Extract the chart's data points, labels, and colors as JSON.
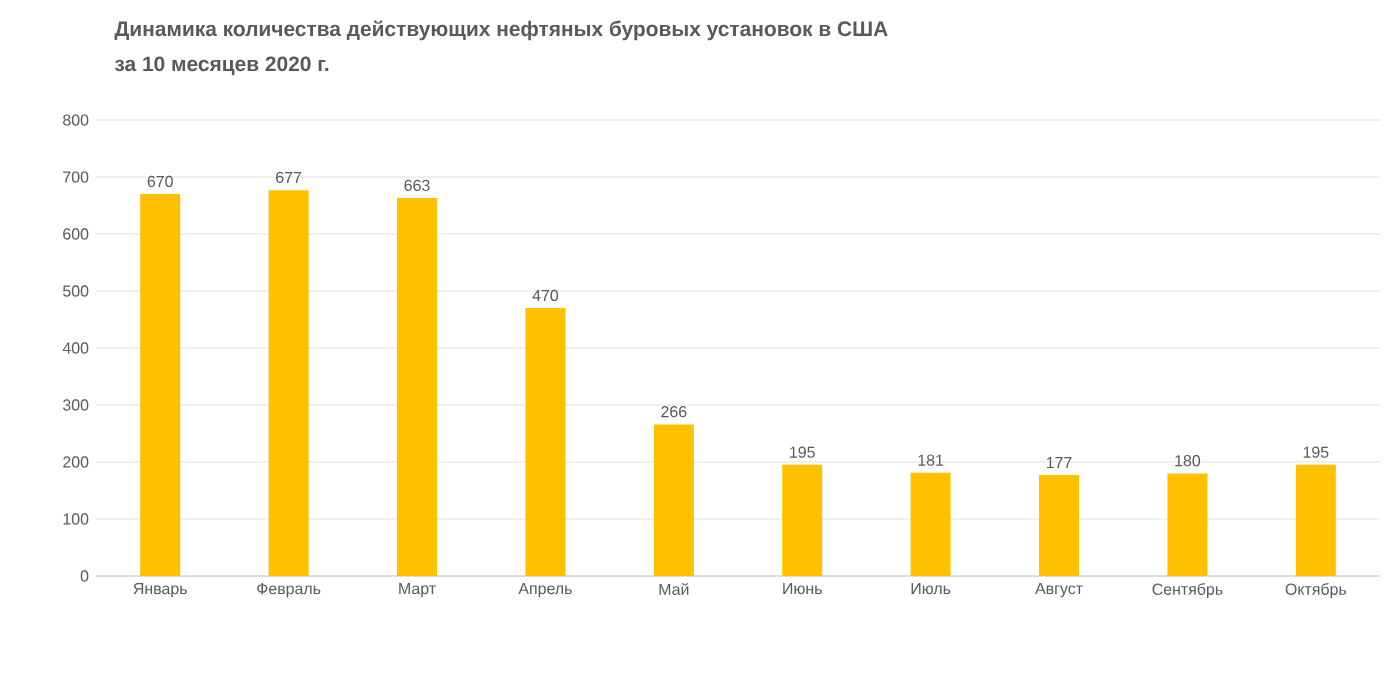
{
  "chart_data": {
    "type": "bar",
    "title": "Динамика количества действующих нефтяных буровых установок в США",
    "subtitle": "за 10 месяцев 2020 г.",
    "categories": [
      "Январь",
      "Февраль",
      "Март",
      "Апрель",
      "Май",
      "Июнь",
      "Июль",
      "Август",
      "Сентябрь",
      "Октябрь"
    ],
    "values": [
      670,
      677,
      663,
      470,
      266,
      195,
      181,
      177,
      180,
      195
    ],
    "color": "#ffc000",
    "ylim": [
      0,
      800
    ],
    "yticks": [
      0,
      100,
      200,
      300,
      400,
      500,
      600,
      700,
      800
    ],
    "grid": "y",
    "data_labels": true
  }
}
